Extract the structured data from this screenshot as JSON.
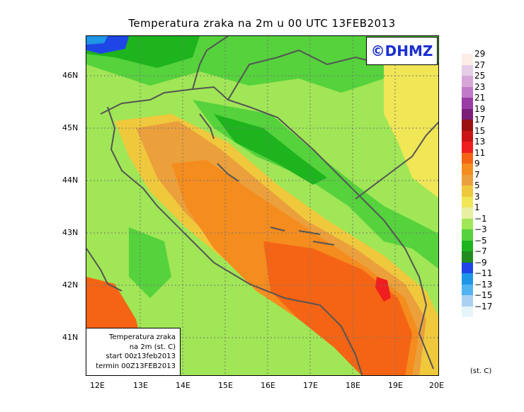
{
  "title": "Temperatura zraka na 2m u 00 UTC 13FEB2013",
  "copyright": "©DHMZ",
  "lat_labels": [
    "46N",
    "45N",
    "44N",
    "43N",
    "42N",
    "41N"
  ],
  "lon_labels": [
    "12E",
    "13E",
    "14E",
    "15E",
    "16E",
    "17E",
    "18E",
    "19E",
    "20E"
  ],
  "info_box": {
    "line1": "Temperatura zraka",
    "line2": "na 2m (st. C)",
    "line3": "start 00z13feb2013",
    "line4": "termin 00Z13FEB2013"
  },
  "colorbar": {
    "labels": [
      "29",
      "27",
      "25",
      "23",
      "21",
      "19",
      "17",
      "15",
      "13",
      "11",
      "9",
      "7",
      "5",
      "3",
      "1",
      "−1",
      "−3",
      "−5",
      "−7",
      "−9",
      "−11",
      "−13",
      "−15",
      "−17"
    ],
    "colors": [
      "#fbeee6",
      "#e6cde6",
      "#d6a6d6",
      "#c07ac8",
      "#9b3ca6",
      "#7a1e7a",
      "#9b1111",
      "#c81414",
      "#f01e1e",
      "#f56414",
      "#f58c1e",
      "#eba03c",
      "#f0c83c",
      "#f0e656",
      "#e6f0a0",
      "#a0e656",
      "#55d23c",
      "#1eb41e",
      "#1e8c1e",
      "#1e46e6",
      "#1e96e6",
      "#50b4f0",
      "#aad2f0",
      "#e6f5fa"
    ],
    "unit": "(st. C)"
  }
}
